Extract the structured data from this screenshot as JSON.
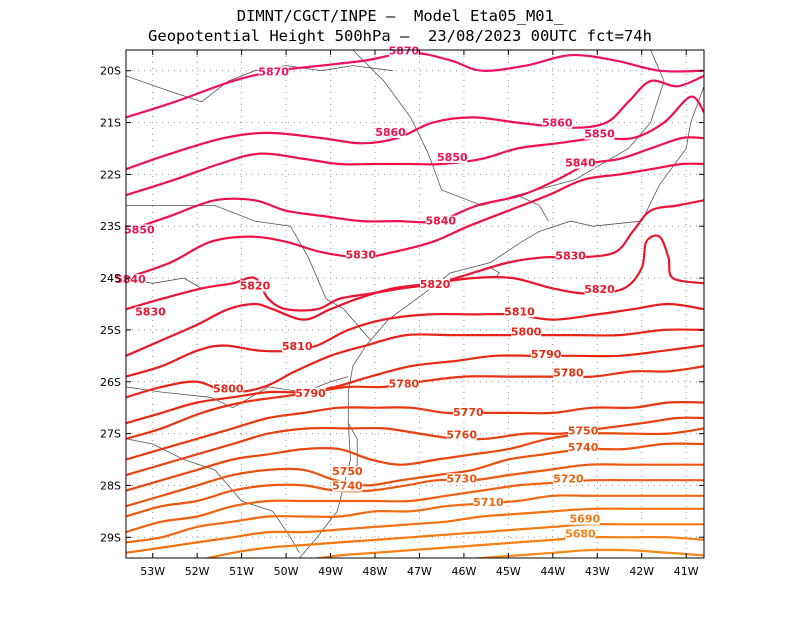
{
  "header": {
    "line1": "DIMNT/CGCT/INPE –  Model Eta05_M01_",
    "line2": "Geopotential Height 500hPa –  23/08/2023 00UTC fct=74h"
  },
  "map": {
    "lon_range": [
      -53.6,
      -40.6
    ],
    "lat_range": [
      -29.4,
      -19.6
    ],
    "lon_ticks": [
      {
        "value": -53,
        "label": "53W"
      },
      {
        "value": -52,
        "label": "52W"
      },
      {
        "value": -51,
        "label": "51W"
      },
      {
        "value": -50,
        "label": "50W"
      },
      {
        "value": -49,
        "label": "49W"
      },
      {
        "value": -48,
        "label": "48W"
      },
      {
        "value": -47,
        "label": "47W"
      },
      {
        "value": -46,
        "label": "46W"
      },
      {
        "value": -45,
        "label": "45W"
      },
      {
        "value": -44,
        "label": "44W"
      },
      {
        "value": -43,
        "label": "43W"
      },
      {
        "value": -42,
        "label": "42W"
      },
      {
        "value": -41,
        "label": "41W"
      }
    ],
    "lat_ticks": [
      {
        "value": -20,
        "label": "20S"
      },
      {
        "value": -21,
        "label": "21S"
      },
      {
        "value": -22,
        "label": "22S"
      },
      {
        "value": -23,
        "label": "23S"
      },
      {
        "value": -24,
        "label": "24S"
      },
      {
        "value": -25,
        "label": "25S"
      },
      {
        "value": -26,
        "label": "26S"
      },
      {
        "value": -27,
        "label": "27S"
      },
      {
        "value": -28,
        "label": "28S"
      },
      {
        "value": -29,
        "label": "29S"
      }
    ],
    "grid": "dotted",
    "contour_field": "Geopotential Height 500hPa",
    "contour_units": "gpm",
    "contour_interval": 10,
    "colors": {
      "5870": "#ee1166",
      "5860": "#ee1155",
      "5850": "#ee1150",
      "5840": "#ee1144",
      "5830": "#e81536",
      "5820": "#e8182a",
      "5810": "#e81c1c",
      "5800": "#e82418",
      "5790": "#e82a14",
      "5780": "#e83214",
      "5770": "#e83812",
      "5760": "#e84012",
      "5750": "#e84810",
      "5740": "#ea5010",
      "5730": "#ec5810",
      "5720": "#ee6010",
      "5710": "#f06810",
      "5700": "#f27010",
      "5690": "#f47812",
      "5680": "#f68014",
      "5670": "#f88818"
    },
    "contour_labels": [
      {
        "text": "5870",
        "lon": -50.28,
        "lat": -20.07
      },
      {
        "text": "5870",
        "lon": -47.35,
        "lat": -19.67
      },
      {
        "text": "5860",
        "lon": -47.65,
        "lat": -21.24
      },
      {
        "text": "5860",
        "lon": -43.9,
        "lat": -21.06
      },
      {
        "text": "5850",
        "lon": -42.95,
        "lat": -21.27
      },
      {
        "text": "5850",
        "lon": -46.26,
        "lat": -21.72
      },
      {
        "text": "5850",
        "lon": -53.3,
        "lat": -23.12
      },
      {
        "text": "5840",
        "lon": -43.38,
        "lat": -21.83
      },
      {
        "text": "5840",
        "lon": -46.52,
        "lat": -22.95
      },
      {
        "text": "5840",
        "lon": -53.5,
        "lat": -24.08
      },
      {
        "text": "5830",
        "lon": -48.32,
        "lat": -23.6
      },
      {
        "text": "5830",
        "lon": -43.6,
        "lat": -23.62
      },
      {
        "text": "5830",
        "lon": -53.05,
        "lat": -24.7
      },
      {
        "text": "5820",
        "lon": -50.7,
        "lat": -24.2
      },
      {
        "text": "5820",
        "lon": -46.65,
        "lat": -24.17
      },
      {
        "text": "5820",
        "lon": -42.95,
        "lat": -24.27
      },
      {
        "text": "5810",
        "lon": -44.75,
        "lat": -24.7
      },
      {
        "text": "5810",
        "lon": -49.75,
        "lat": -25.37
      },
      {
        "text": "5800",
        "lon": -44.6,
        "lat": -25.09
      },
      {
        "text": "5800",
        "lon": -51.3,
        "lat": -26.19
      },
      {
        "text": "5790",
        "lon": -44.15,
        "lat": -25.52
      },
      {
        "text": "5790",
        "lon": -49.45,
        "lat": -26.27
      },
      {
        "text": "5780",
        "lon": -43.65,
        "lat": -25.88
      },
      {
        "text": "5780",
        "lon": -47.35,
        "lat": -26.09
      },
      {
        "text": "5770",
        "lon": -45.9,
        "lat": -26.64
      },
      {
        "text": "5760",
        "lon": -46.05,
        "lat": -27.08
      },
      {
        "text": "5750",
        "lon": -43.32,
        "lat": -27.0
      },
      {
        "text": "5740",
        "lon": -43.32,
        "lat": -27.32
      },
      {
        "text": "5750",
        "lon": -48.62,
        "lat": -27.78
      },
      {
        "text": "5740",
        "lon": -48.62,
        "lat": -28.06
      },
      {
        "text": "5730",
        "lon": -46.05,
        "lat": -27.92
      },
      {
        "text": "5720",
        "lon": -43.65,
        "lat": -27.92
      },
      {
        "text": "5710",
        "lon": -45.45,
        "lat": -28.38
      },
      {
        "text": "5690",
        "lon": -43.28,
        "lat": -28.7
      },
      {
        "text": "5680",
        "lon": -43.38,
        "lat": -28.99
      }
    ]
  }
}
